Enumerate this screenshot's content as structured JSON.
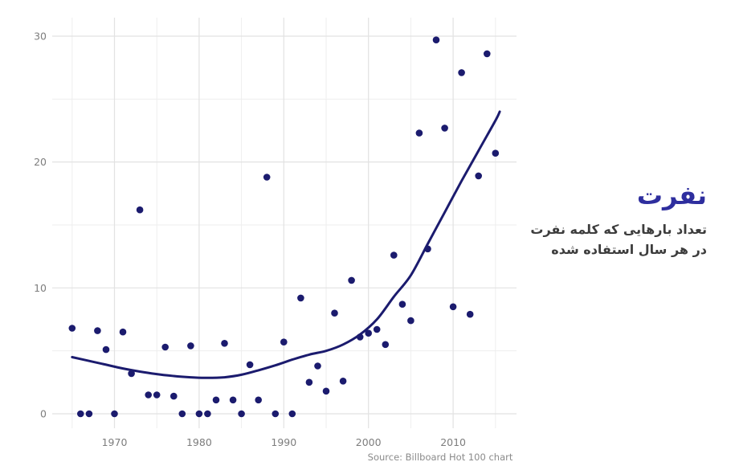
{
  "page": {
    "background": "#ffffff"
  },
  "annotation": {
    "title": "نفرت",
    "subtitle_line1": "تعداد بارهایی که کلمه نفرت",
    "subtitle_line2": "در هر سال استفاده شده",
    "title_color": "#2e2e9e",
    "subtitle_color": "#3d3d3d"
  },
  "chart_data": {
    "type": "scatter",
    "title": "نفرت",
    "subtitle": "تعداد بارهایی که کلمه نفرت در هر سال استفاده شده",
    "source": "Source: Billboard Hot 100 chart",
    "xlabel": "",
    "ylabel": "",
    "grid": "on",
    "legend": "none",
    "x_tick_labels": [
      "1970",
      "1980",
      "1990",
      "2000",
      "2010"
    ],
    "x_ticks": [
      1970,
      1980,
      1990,
      2000,
      2010
    ],
    "x_minor_ticks": [
      1965,
      1975,
      1985,
      1995,
      2005,
      2015
    ],
    "y_tick_labels": [
      "0",
      "10",
      "20",
      "30"
    ],
    "y_ticks": [
      0,
      10,
      20,
      30
    ],
    "y_minor_ticks": [
      5,
      15,
      25
    ],
    "xlim": [
      1962.6,
      2017.5
    ],
    "ylim": [
      -1.1,
      31.5
    ],
    "point_color": "#1b1b6e",
    "trend_color": "#1b1b6e",
    "major_grid_color": "#e2e2e2",
    "minor_grid_color": "#eeeeee",
    "tick_label_color": "#7d7d7d",
    "points": [
      [
        1965,
        6.8
      ],
      [
        1966,
        0
      ],
      [
        1967,
        0
      ],
      [
        1968,
        6.6
      ],
      [
        1969,
        5.1
      ],
      [
        1970,
        0
      ],
      [
        1971,
        6.5
      ],
      [
        1972,
        3.2
      ],
      [
        1973,
        16.2
      ],
      [
        1974,
        1.5
      ],
      [
        1975,
        1.5
      ],
      [
        1976,
        5.3
      ],
      [
        1977,
        1.4
      ],
      [
        1978,
        0
      ],
      [
        1979,
        5.4
      ],
      [
        1980,
        0
      ],
      [
        1981,
        0
      ],
      [
        1982,
        1.1
      ],
      [
        1983,
        5.6
      ],
      [
        1984,
        1.1
      ],
      [
        1985,
        0
      ],
      [
        1986,
        3.9
      ],
      [
        1987,
        1.1
      ],
      [
        1988,
        18.8
      ],
      [
        1989,
        0
      ],
      [
        1990,
        5.7
      ],
      [
        1991,
        0
      ],
      [
        1992,
        9.2
      ],
      [
        1993,
        2.5
      ],
      [
        1994,
        3.8
      ],
      [
        1995,
        1.8
      ],
      [
        1996,
        8
      ],
      [
        1997,
        2.6
      ],
      [
        1998,
        10.6
      ],
      [
        1999,
        6.1
      ],
      [
        2000,
        6.4
      ],
      [
        2001,
        6.7
      ],
      [
        2002,
        5.5
      ],
      [
        2003,
        12.6
      ],
      [
        2004,
        8.7
      ],
      [
        2005,
        7.4
      ],
      [
        2006,
        22.3
      ],
      [
        2007,
        13.1
      ],
      [
        2008,
        29.7
      ],
      [
        2009,
        22.7
      ],
      [
        2010,
        8.5
      ],
      [
        2011,
        27.1
      ],
      [
        2012,
        7.9
      ],
      [
        2013,
        18.9
      ],
      [
        2014,
        28.6
      ],
      [
        2015,
        20.7
      ]
    ],
    "trend": [
      [
        1965,
        4.5
      ],
      [
        1967,
        4.2
      ],
      [
        1969,
        3.9
      ],
      [
        1971,
        3.6
      ],
      [
        1973,
        3.35
      ],
      [
        1975,
        3.15
      ],
      [
        1977,
        3.0
      ],
      [
        1979,
        2.9
      ],
      [
        1981,
        2.85
      ],
      [
        1983,
        2.9
      ],
      [
        1985,
        3.1
      ],
      [
        1987,
        3.45
      ],
      [
        1989,
        3.85
      ],
      [
        1991,
        4.3
      ],
      [
        1993,
        4.7
      ],
      [
        1995,
        5.0
      ],
      [
        1997,
        5.5
      ],
      [
        1999,
        6.3
      ],
      [
        2001,
        7.5
      ],
      [
        2003,
        9.3
      ],
      [
        2005,
        11.0
      ],
      [
        2007,
        13.5
      ],
      [
        2009,
        16.0
      ],
      [
        2011,
        18.5
      ],
      [
        2013,
        20.9
      ],
      [
        2015,
        23.3
      ],
      [
        2015.5,
        24.0
      ]
    ]
  }
}
